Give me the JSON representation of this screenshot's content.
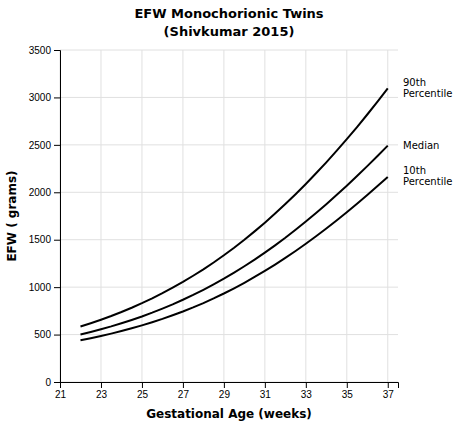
{
  "chart_data": {
    "type": "line",
    "title": "EFW Monochorionic Twins",
    "subtitle": "(Shivkumar 2015)",
    "x_label": "Gestational Age (weeks)",
    "y_label": "EFW ( grams)",
    "x": [
      22.0,
      22.5,
      23,
      23.5,
      24,
      24.5,
      25,
      25.5,
      26,
      26.5,
      27,
      27.5,
      28,
      28.5,
      29,
      29.5,
      30,
      30.5,
      31,
      31.5,
      32,
      32.5,
      33,
      33.5,
      34,
      34.5,
      35,
      35.5,
      36,
      36.5,
      37
    ],
    "series": [
      {
        "name": "90th\nPercentile",
        "color": "#000000",
        "values": [
          585,
          620,
          657,
          696,
          738,
          783,
          831,
          882,
          936,
          994,
          1055,
          1120,
          1188,
          1260,
          1336,
          1416,
          1500,
          1588,
          1680,
          1776,
          1876,
          1980,
          2088,
          2200,
          2316,
          2436,
          2560,
          2688,
          2820,
          2956,
          3096
        ]
      },
      {
        "name": "Median",
        "color": "#000000",
        "values": [
          500,
          527,
          556,
          586,
          619,
          654,
          691,
          731,
          774,
          819,
          867,
          918,
          972,
          1029,
          1089,
          1153,
          1220,
          1290,
          1364,
          1441,
          1521,
          1605,
          1692,
          1782,
          1875,
          1971,
          2070,
          2172,
          2276,
          2383,
          2492
        ]
      },
      {
        "name": "10th\nPercentile",
        "color": "#000000",
        "values": [
          440,
          462,
          485,
          510,
          537,
          566,
          597,
          630,
          665,
          703,
          743,
          786,
          832,
          881,
          933,
          988,
          1046,
          1107,
          1171,
          1238,
          1308,
          1381,
          1457,
          1536,
          1618,
          1703,
          1790,
          1880,
          1972,
          2066,
          2162
        ]
      }
    ],
    "xlim": [
      21,
      37.5
    ],
    "ylim": [
      0,
      3500
    ],
    "xticks": [
      21,
      23,
      25,
      27,
      29,
      31,
      33,
      35,
      37
    ],
    "yticks": [
      0,
      500,
      1000,
      1500,
      2000,
      2500,
      3000,
      3500
    ],
    "grid": true
  }
}
